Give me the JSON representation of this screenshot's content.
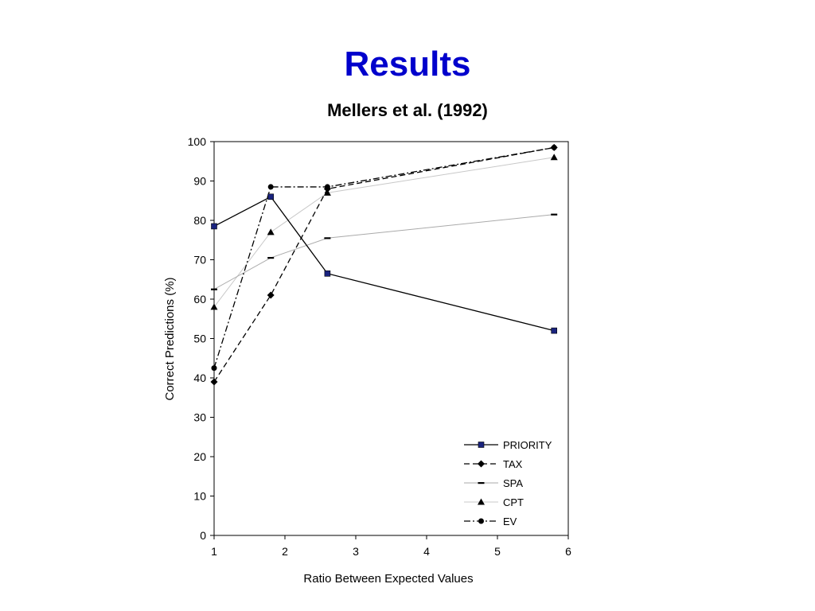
{
  "slide": {
    "title": "Results"
  },
  "chart_data": {
    "type": "line",
    "title": "Mellers et al. (1992)",
    "xlabel": "Ratio Between Expected Values",
    "ylabel": "Correct Predictions (%)",
    "xlim": [
      1,
      6
    ],
    "ylim": [
      0,
      100
    ],
    "xticks": [
      1,
      2,
      3,
      4,
      5,
      6
    ],
    "yticks": [
      0,
      10,
      20,
      30,
      40,
      50,
      60,
      70,
      80,
      90,
      100
    ],
    "grid": false,
    "legend_position": "bottom-right",
    "x": [
      1,
      1.8,
      2.6,
      5.8
    ],
    "series": [
      {
        "name": "PRIORITY",
        "values": [
          78.5,
          86,
          66.5,
          52
        ],
        "marker": "square",
        "line": "solid",
        "color": "#000000",
        "marker_color": "#1a237e"
      },
      {
        "name": "TAX",
        "values": [
          39,
          61,
          88,
          98.5
        ],
        "marker": "diamond",
        "line": "dashed",
        "color": "#000000",
        "marker_color": "#000000"
      },
      {
        "name": "SPA",
        "values": [
          62.5,
          70.5,
          75.5,
          81.5
        ],
        "marker": "dash",
        "line": "thin",
        "color": "#aaaaaa",
        "marker_color": "#000000"
      },
      {
        "name": "CPT",
        "values": [
          58,
          77,
          87,
          96
        ],
        "marker": "triangle",
        "line": "thin",
        "color": "#c8c8c8",
        "marker_color": "#000000"
      },
      {
        "name": "EV",
        "values": [
          42.5,
          88.5,
          88.5,
          98.5
        ],
        "marker": "circle",
        "line": "dashdot",
        "color": "#000000",
        "marker_color": "#000000"
      }
    ]
  }
}
